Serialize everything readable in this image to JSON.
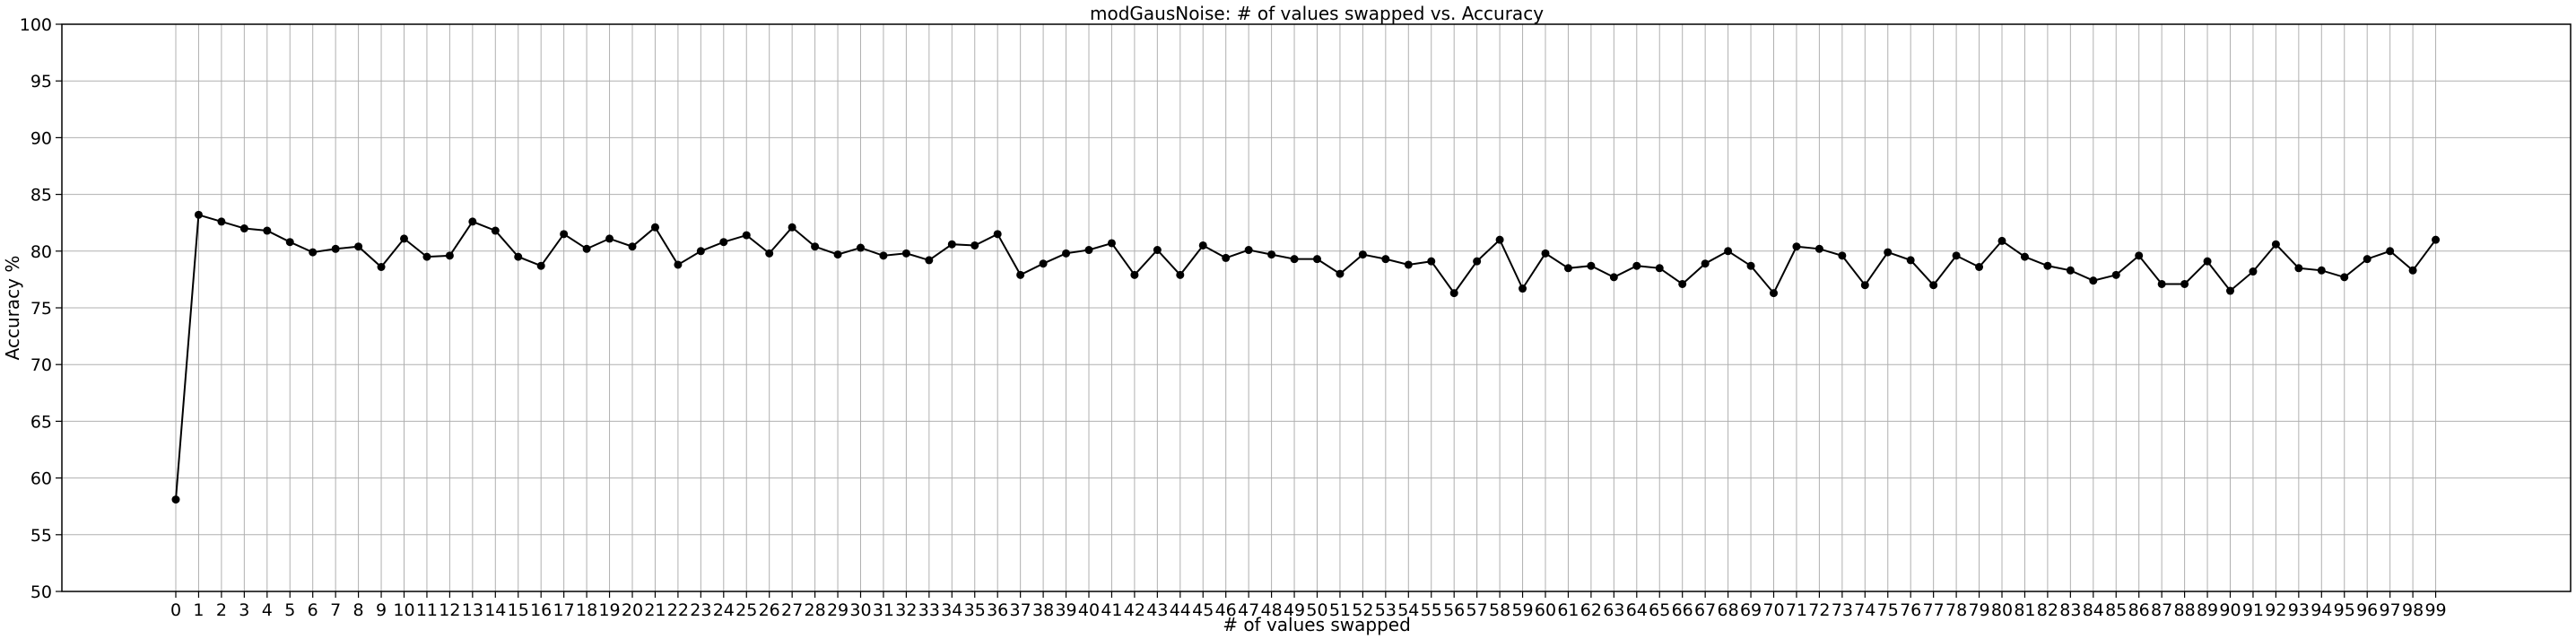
{
  "chart_data": {
    "type": "line",
    "title": "modGausNoise: # of values swapped vs. Accuracy",
    "xlabel": "# of values swapped",
    "ylabel": "Accuracy %",
    "ylim": [
      50,
      100
    ],
    "yticks": [
      50,
      55,
      60,
      65,
      70,
      75,
      80,
      85,
      90,
      95,
      100
    ],
    "grid": true,
    "color": "#000000",
    "marker": "circle",
    "x": [
      0,
      1,
      2,
      3,
      4,
      5,
      6,
      7,
      8,
      9,
      10,
      11,
      12,
      13,
      14,
      15,
      16,
      17,
      18,
      19,
      20,
      21,
      22,
      23,
      24,
      25,
      26,
      27,
      28,
      29,
      30,
      31,
      32,
      33,
      34,
      35,
      36,
      37,
      38,
      39,
      40,
      41,
      42,
      43,
      44,
      45,
      46,
      47,
      48,
      49,
      50,
      51,
      52,
      53,
      54,
      55,
      56,
      57,
      58,
      59,
      60,
      61,
      62,
      63,
      64,
      65,
      66,
      67,
      68,
      69,
      70,
      71,
      72,
      73,
      74,
      75,
      76,
      77,
      78,
      79,
      80,
      81,
      82,
      83,
      84,
      85,
      86,
      87,
      88,
      89,
      90,
      91,
      92,
      93,
      94,
      95,
      96,
      97,
      98,
      99
    ],
    "values": [
      58.1,
      83.2,
      82.6,
      82.0,
      81.8,
      80.8,
      79.9,
      80.2,
      80.4,
      78.6,
      81.1,
      79.5,
      79.6,
      82.6,
      81.8,
      79.5,
      78.7,
      81.5,
      80.2,
      81.1,
      80.4,
      82.1,
      78.8,
      80.0,
      80.8,
      81.4,
      79.8,
      82.1,
      80.4,
      79.7,
      80.3,
      79.6,
      79.8,
      79.2,
      80.6,
      80.5,
      81.5,
      77.9,
      78.9,
      79.8,
      80.1,
      80.7,
      77.9,
      80.1,
      77.9,
      80.5,
      79.4,
      80.1,
      79.7,
      79.3,
      79.3,
      78.0,
      79.7,
      79.3,
      78.8,
      79.1,
      76.3,
      79.1,
      81.0,
      76.7,
      79.8,
      78.5,
      78.7,
      77.7,
      78.7,
      78.5,
      77.1,
      78.9,
      80.0,
      78.7,
      76.3,
      80.4,
      80.2,
      79.6,
      77.0,
      79.9,
      79.2,
      77.0,
      79.6,
      78.6,
      80.9,
      79.5,
      78.7,
      78.3,
      77.4,
      77.9,
      79.6,
      77.1,
      77.1,
      79.1,
      76.5,
      78.2,
      80.6,
      78.5,
      78.3,
      77.7,
      79.3,
      80.0,
      78.3,
      81.0
    ]
  }
}
